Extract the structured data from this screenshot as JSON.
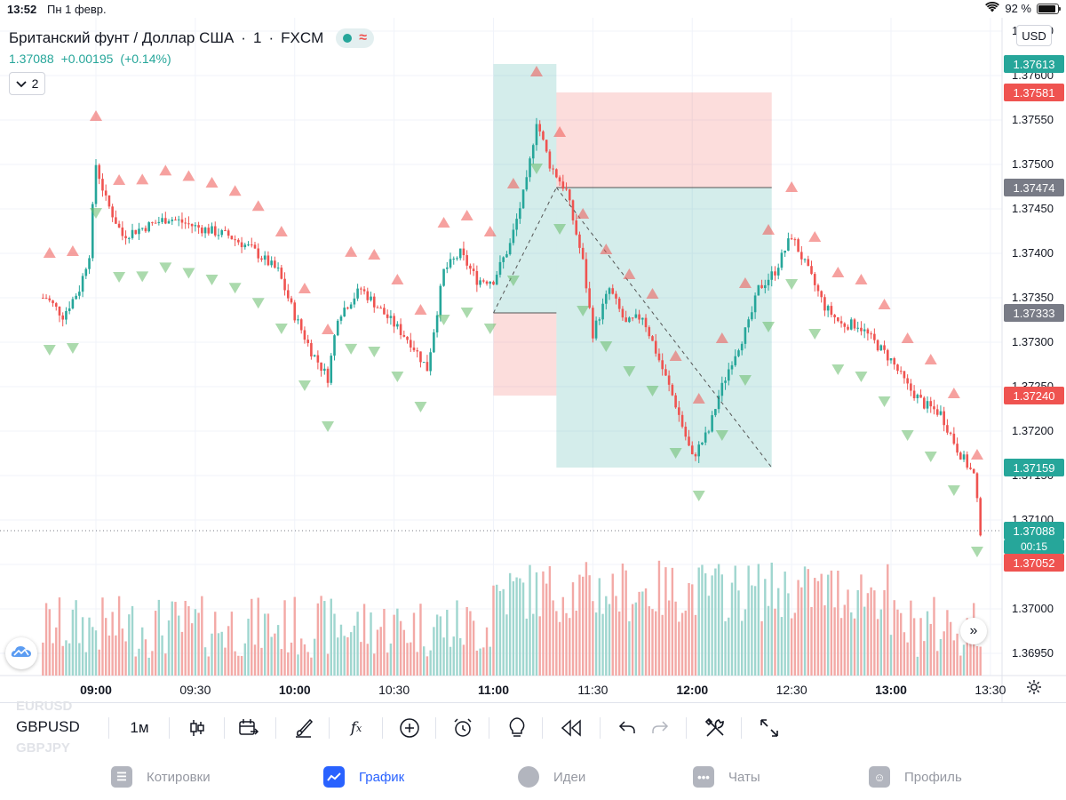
{
  "status_bar": {
    "time": "13:52",
    "date": "Пн 1 февр.",
    "battery_percent": "92 %",
    "battery_level": 0.92,
    "wifi_icon": "wifi-icon"
  },
  "header": {
    "symbol_full": "Британский фунт / Доллар США",
    "interval": "1",
    "exchange": "FXCM",
    "last_price": "1.37088",
    "change": "+0.00195",
    "change_percent": "(+0.14%)",
    "indicators_count": "2"
  },
  "currency_button": "USD",
  "colors": {
    "up": "#26a69a",
    "down": "#ef5350",
    "up_volume": "#9fd6cf",
    "down_volume": "#f3a9a6",
    "tp_zone": "#26a69a",
    "sl_zone": "#ef5350",
    "grey_tag": "#787b86",
    "accent": "#2962ff"
  },
  "price_scale_labels": [
    "1.37650",
    "1.37600",
    "1.37550",
    "1.37500",
    "1.37450",
    "1.37400",
    "1.37350",
    "1.37300",
    "1.37250",
    "1.37200",
    "1.37150",
    "1.37100",
    "1.37050",
    "1.37000",
    "1.36950"
  ],
  "price_tags": [
    {
      "value": "1.37613",
      "color": "#26a69a"
    },
    {
      "value": "1.37581",
      "color": "#ef5350"
    },
    {
      "value": "1.37474",
      "color": "#787b86"
    },
    {
      "value": "1.37333",
      "color": "#787b86"
    },
    {
      "value": "1.37240",
      "color": "#ef5350"
    },
    {
      "value": "1.37159",
      "color": "#26a69a"
    },
    {
      "value": "1.37088",
      "color": "#26a69a"
    },
    {
      "value": "00:15",
      "color": "#26a69a"
    },
    {
      "value": "1.37052",
      "color": "#ef5350"
    }
  ],
  "time_labels": [
    {
      "label": "09:00",
      "bold": true
    },
    {
      "label": "09:30",
      "bold": false
    },
    {
      "label": "10:00",
      "bold": true
    },
    {
      "label": "10:30",
      "bold": false
    },
    {
      "label": "11:00",
      "bold": true
    },
    {
      "label": "11:30",
      "bold": false
    },
    {
      "label": "12:00",
      "bold": true
    },
    {
      "label": "12:30",
      "bold": false
    },
    {
      "label": "13:00",
      "bold": true
    },
    {
      "label": "13:30",
      "bold": false
    }
  ],
  "chart_data": {
    "type": "candlestick",
    "symbol": "GBPUSD",
    "interval": "1m",
    "y_range": [
      1.36925,
      1.37665
    ],
    "x_range": [
      "08:44",
      "13:52"
    ],
    "volume_bars": true,
    "signal_markers": true,
    "close_path": [
      [
        "08:45",
        1.3735
      ],
      [
        "08:50",
        1.3733
      ],
      [
        "08:55",
        1.3736
      ],
      [
        "08:58",
        1.374
      ],
      [
        "09:00",
        1.375
      ],
      [
        "09:03",
        1.3746
      ],
      [
        "09:08",
        1.3742
      ],
      [
        "09:15",
        1.3743
      ],
      [
        "09:22",
        1.3744
      ],
      [
        "09:30",
        1.3743
      ],
      [
        "09:40",
        1.3742
      ],
      [
        "09:47",
        1.37405
      ],
      [
        "09:55",
        1.3738
      ],
      [
        "10:00",
        1.3733
      ],
      [
        "10:05",
        1.3729
      ],
      [
        "10:10",
        1.3726
      ],
      [
        "10:13",
        1.3733
      ],
      [
        "10:20",
        1.3736
      ],
      [
        "10:25",
        1.3734
      ],
      [
        "10:30",
        1.3732
      ],
      [
        "10:35",
        1.373
      ],
      [
        "10:40",
        1.3727
      ],
      [
        "10:45",
        1.3738
      ],
      [
        "10:50",
        1.374
      ],
      [
        "10:55",
        1.3737
      ],
      [
        "11:00",
        1.3737
      ],
      [
        "11:05",
        1.3741
      ],
      [
        "11:10",
        1.3748
      ],
      [
        "11:13",
        1.3755
      ],
      [
        "11:17",
        1.375
      ],
      [
        "11:22",
        1.3747
      ],
      [
        "11:27",
        1.3739
      ],
      [
        "11:30",
        1.3731
      ],
      [
        "11:35",
        1.3736
      ],
      [
        "11:40",
        1.3732
      ],
      [
        "11:45",
        1.3733
      ],
      [
        "11:50",
        1.3728
      ],
      [
        "11:55",
        1.3723
      ],
      [
        "12:00",
        1.3717
      ],
      [
        "12:05",
        1.372
      ],
      [
        "12:08",
        1.3724
      ],
      [
        "12:12",
        1.3728
      ],
      [
        "12:17",
        1.3732
      ],
      [
        "12:20",
        1.3736
      ],
      [
        "12:25",
        1.3738
      ],
      [
        "12:30",
        1.3742
      ],
      [
        "12:35",
        1.3738
      ],
      [
        "12:40",
        1.3734
      ],
      [
        "12:45",
        1.3732
      ],
      [
        "12:50",
        1.3732
      ],
      [
        "12:55",
        1.373
      ],
      [
        "13:00",
        1.3728
      ],
      [
        "13:05",
        1.3725
      ],
      [
        "13:10",
        1.3723
      ],
      [
        "13:15",
        1.3722
      ],
      [
        "13:20",
        1.3718
      ],
      [
        "13:25",
        1.3715
      ],
      [
        "13:27",
        1.37088
      ]
    ],
    "positions": [
      {
        "type": "long",
        "start": "11:00",
        "end": "11:19",
        "entry": 1.37333,
        "target": 1.37613,
        "stop": 1.3724
      },
      {
        "type": "short",
        "start": "11:19",
        "end": "12:24",
        "entry": 1.37474,
        "target": 1.37159,
        "stop": 1.37581
      }
    ]
  },
  "toolbar": {
    "symbol": "GBPUSD",
    "ghost_above": "EURUSD",
    "ghost_below": "GBPJPY",
    "interval": "1м",
    "items": [
      "candles-icon",
      "calendar-compare-icon",
      "brush-icon",
      "fx-icon",
      "plus-circle-icon",
      "alarm-icon",
      "lightbulb-icon",
      "replay-icon",
      "undo-icon",
      "redo-icon",
      "tools-icon",
      "fullscreen-icon"
    ]
  },
  "bottom_nav": {
    "items": [
      {
        "label": "Котировки",
        "icon": "list-icon",
        "active": false
      },
      {
        "label": "График",
        "icon": "chart-icon",
        "active": true
      },
      {
        "label": "Идеи",
        "icon": "bulb-icon",
        "active": false
      },
      {
        "label": "Чаты",
        "icon": "chat-icon",
        "active": false
      },
      {
        "label": "Профиль",
        "icon": "profile-icon",
        "active": false
      }
    ]
  }
}
